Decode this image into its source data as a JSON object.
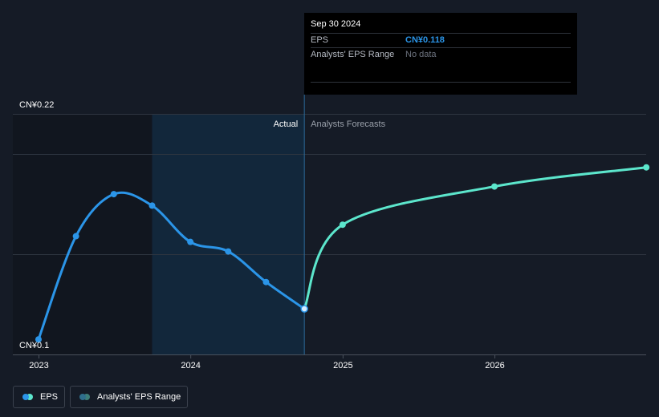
{
  "chart_data": {
    "type": "line",
    "ylabel_top": "CN¥0.22",
    "ylabel_bottom": "CN¥0.1",
    "ylim": [
      0.1,
      0.22
    ],
    "x_ticks": [
      "2023",
      "2024",
      "2025",
      "2026"
    ],
    "region_labels": {
      "actual": "Actual",
      "forecast": "Analysts Forecasts"
    },
    "series": [
      {
        "name": "EPS",
        "color": "#2b95e8",
        "points": [
          {
            "x": "2022-12-31",
            "y": 0.102
          },
          {
            "x": "2023-03-31",
            "y": 0.156
          },
          {
            "x": "2023-06-30",
            "y": 0.178
          },
          {
            "x": "2023-09-30",
            "y": 0.172
          },
          {
            "x": "2023-12-31",
            "y": 0.153
          },
          {
            "x": "2024-03-31",
            "y": 0.148
          },
          {
            "x": "2024-06-30",
            "y": 0.132
          },
          {
            "x": "2024-09-30",
            "y": 0.118
          }
        ]
      },
      {
        "name": "EPS Forecast",
        "color": "#5ce6cc",
        "points": [
          {
            "x": "2024-09-30",
            "y": 0.118
          },
          {
            "x": "2024-12-31",
            "y": 0.162
          },
          {
            "x": "2025-12-31",
            "y": 0.182
          },
          {
            "x": "2026-12-31",
            "y": 0.192
          }
        ]
      }
    ],
    "tooltip": {
      "date": "Sep 30 2024",
      "rows": [
        {
          "label": "EPS",
          "value": "CN¥0.118"
        },
        {
          "label": "Analysts' EPS Range",
          "value": "No data"
        }
      ]
    },
    "legend": [
      {
        "label": "EPS",
        "colors": [
          "#2b95e8",
          "#5ce6cc"
        ]
      },
      {
        "label": "Analysts' EPS Range",
        "colors": [
          "#2f6f8c",
          "#3d7e78"
        ]
      }
    ],
    "grid": true
  }
}
